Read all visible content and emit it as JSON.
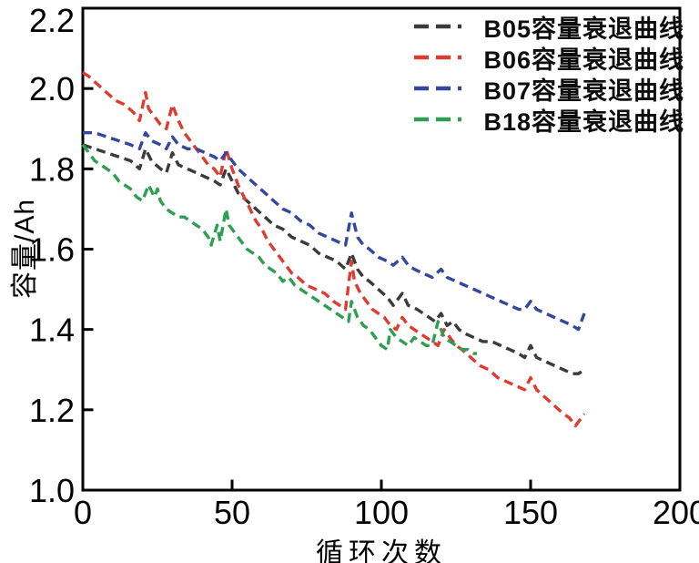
{
  "figure": {
    "background_color": "#ffffff",
    "axis_color": "#000000",
    "tick_direction": "in"
  },
  "chart_data": {
    "type": "line",
    "title": "",
    "xlabel": "循环次数",
    "ylabel": "容量/Ah",
    "xlim": [
      0,
      200
    ],
    "ylim": [
      1.0,
      2.2
    ],
    "xticks": [
      0,
      50,
      100,
      150,
      200
    ],
    "xtick_labels": [
      "0",
      "50",
      "100",
      "150",
      "200"
    ],
    "yticks": [
      1.0,
      1.2,
      1.4,
      1.6,
      1.8,
      2.0,
      2.2
    ],
    "ytick_labels": [
      "1.0",
      "1.2",
      "1.4",
      "1.6",
      "1.8",
      "2.0",
      "2.2"
    ],
    "grid": false,
    "legend_position": "top-right-inside",
    "legend_marker": "dash-dash-dot",
    "line_style": "dashed",
    "series": [
      {
        "name": "B05容量衰退曲线",
        "color": "#3b3b3b",
        "points": [
          [
            0,
            1.86
          ],
          [
            4,
            1.85
          ],
          [
            8,
            1.84
          ],
          [
            12,
            1.83
          ],
          [
            16,
            1.82
          ],
          [
            19,
            1.8
          ],
          [
            21,
            1.85
          ],
          [
            23,
            1.82
          ],
          [
            26,
            1.8
          ],
          [
            28,
            1.79
          ],
          [
            30,
            1.84
          ],
          [
            32,
            1.81
          ],
          [
            35,
            1.8
          ],
          [
            38,
            1.79
          ],
          [
            41,
            1.78
          ],
          [
            44,
            1.77
          ],
          [
            46,
            1.76
          ],
          [
            48,
            1.8
          ],
          [
            50,
            1.77
          ],
          [
            52,
            1.74
          ],
          [
            55,
            1.72
          ],
          [
            58,
            1.7
          ],
          [
            61,
            1.68
          ],
          [
            64,
            1.66
          ],
          [
            67,
            1.65
          ],
          [
            70,
            1.63
          ],
          [
            73,
            1.62
          ],
          [
            76,
            1.61
          ],
          [
            79,
            1.59
          ],
          [
            82,
            1.58
          ],
          [
            85,
            1.57
          ],
          [
            88,
            1.55
          ],
          [
            90,
            1.59
          ],
          [
            92,
            1.55
          ],
          [
            94,
            1.53
          ],
          [
            96,
            1.52
          ],
          [
            99,
            1.5
          ],
          [
            102,
            1.48
          ],
          [
            104,
            1.46
          ],
          [
            107,
            1.49
          ],
          [
            109,
            1.46
          ],
          [
            112,
            1.45
          ],
          [
            114,
            1.44
          ],
          [
            116,
            1.43
          ],
          [
            118,
            1.42
          ],
          [
            120,
            1.44
          ],
          [
            122,
            1.41
          ],
          [
            124,
            1.42
          ],
          [
            126,
            1.4
          ],
          [
            128,
            1.39
          ],
          [
            131,
            1.38
          ],
          [
            134,
            1.37
          ],
          [
            137,
            1.37
          ],
          [
            140,
            1.36
          ],
          [
            143,
            1.35
          ],
          [
            146,
            1.34
          ],
          [
            148,
            1.33
          ],
          [
            150,
            1.36
          ],
          [
            152,
            1.33
          ],
          [
            155,
            1.32
          ],
          [
            158,
            1.31
          ],
          [
            161,
            1.3
          ],
          [
            164,
            1.29
          ],
          [
            166,
            1.29
          ],
          [
            168,
            1.3
          ]
        ]
      },
      {
        "name": "B06容量衰退曲线",
        "color": "#de3b31",
        "points": [
          [
            0,
            2.04
          ],
          [
            2,
            2.03
          ],
          [
            5,
            2.01
          ],
          [
            8,
            1.99
          ],
          [
            11,
            1.97
          ],
          [
            14,
            1.96
          ],
          [
            17,
            1.94
          ],
          [
            19,
            1.92
          ],
          [
            21,
            1.99
          ],
          [
            22,
            1.95
          ],
          [
            24,
            1.93
          ],
          [
            26,
            1.91
          ],
          [
            28,
            1.9
          ],
          [
            30,
            1.96
          ],
          [
            32,
            1.92
          ],
          [
            34,
            1.89
          ],
          [
            36,
            1.87
          ],
          [
            38,
            1.85
          ],
          [
            40,
            1.83
          ],
          [
            42,
            1.81
          ],
          [
            44,
            1.8
          ],
          [
            46,
            1.78
          ],
          [
            48,
            1.85
          ],
          [
            50,
            1.8
          ],
          [
            52,
            1.76
          ],
          [
            54,
            1.73
          ],
          [
            56,
            1.7
          ],
          [
            58,
            1.67
          ],
          [
            60,
            1.65
          ],
          [
            62,
            1.62
          ],
          [
            64,
            1.6
          ],
          [
            66,
            1.58
          ],
          [
            68,
            1.56
          ],
          [
            70,
            1.54
          ],
          [
            72,
            1.53
          ],
          [
            75,
            1.51
          ],
          [
            78,
            1.5
          ],
          [
            81,
            1.49
          ],
          [
            84,
            1.47
          ],
          [
            86,
            1.46
          ],
          [
            88,
            1.45
          ],
          [
            90,
            1.57
          ],
          [
            91,
            1.52
          ],
          [
            93,
            1.49
          ],
          [
            95,
            1.47
          ],
          [
            97,
            1.45
          ],
          [
            99,
            1.44
          ],
          [
            101,
            1.43
          ],
          [
            103,
            1.41
          ],
          [
            105,
            1.4
          ],
          [
            107,
            1.43
          ],
          [
            109,
            1.41
          ],
          [
            111,
            1.4
          ],
          [
            113,
            1.39
          ],
          [
            115,
            1.38
          ],
          [
            117,
            1.37
          ],
          [
            119,
            1.36
          ],
          [
            121,
            1.4
          ],
          [
            123,
            1.38
          ],
          [
            125,
            1.36
          ],
          [
            127,
            1.35
          ],
          [
            130,
            1.33
          ],
          [
            133,
            1.31
          ],
          [
            136,
            1.3
          ],
          [
            139,
            1.28
          ],
          [
            142,
            1.27
          ],
          [
            145,
            1.26
          ],
          [
            148,
            1.25
          ],
          [
            150,
            1.28
          ],
          [
            152,
            1.25
          ],
          [
            155,
            1.23
          ],
          [
            158,
            1.21
          ],
          [
            161,
            1.19
          ],
          [
            163,
            1.18
          ],
          [
            165,
            1.16
          ],
          [
            168,
            1.19
          ]
        ]
      },
      {
        "name": "B07容量衰退曲线",
        "color": "#34479c",
        "points": [
          [
            0,
            1.89
          ],
          [
            4,
            1.89
          ],
          [
            8,
            1.88
          ],
          [
            12,
            1.87
          ],
          [
            16,
            1.86
          ],
          [
            19,
            1.85
          ],
          [
            21,
            1.89
          ],
          [
            23,
            1.87
          ],
          [
            26,
            1.86
          ],
          [
            28,
            1.85
          ],
          [
            30,
            1.88
          ],
          [
            32,
            1.86
          ],
          [
            35,
            1.85
          ],
          [
            38,
            1.85
          ],
          [
            41,
            1.84
          ],
          [
            44,
            1.83
          ],
          [
            46,
            1.82
          ],
          [
            48,
            1.84
          ],
          [
            50,
            1.82
          ],
          [
            52,
            1.8
          ],
          [
            55,
            1.78
          ],
          [
            58,
            1.76
          ],
          [
            61,
            1.74
          ],
          [
            64,
            1.72
          ],
          [
            67,
            1.7
          ],
          [
            70,
            1.69
          ],
          [
            73,
            1.67
          ],
          [
            76,
            1.66
          ],
          [
            79,
            1.64
          ],
          [
            82,
            1.63
          ],
          [
            85,
            1.62
          ],
          [
            88,
            1.61
          ],
          [
            90,
            1.69
          ],
          [
            92,
            1.63
          ],
          [
            94,
            1.61
          ],
          [
            96,
            1.6
          ],
          [
            99,
            1.58
          ],
          [
            102,
            1.57
          ],
          [
            104,
            1.56
          ],
          [
            107,
            1.58
          ],
          [
            109,
            1.56
          ],
          [
            111,
            1.55
          ],
          [
            114,
            1.54
          ],
          [
            117,
            1.53
          ],
          [
            120,
            1.55
          ],
          [
            122,
            1.53
          ],
          [
            125,
            1.52
          ],
          [
            128,
            1.51
          ],
          [
            131,
            1.5
          ],
          [
            134,
            1.49
          ],
          [
            137,
            1.48
          ],
          [
            140,
            1.47
          ],
          [
            143,
            1.46
          ],
          [
            146,
            1.45
          ],
          [
            148,
            1.45
          ],
          [
            150,
            1.47
          ],
          [
            152,
            1.45
          ],
          [
            155,
            1.44
          ],
          [
            158,
            1.43
          ],
          [
            161,
            1.42
          ],
          [
            164,
            1.41
          ],
          [
            166,
            1.4
          ],
          [
            168,
            1.44
          ]
        ]
      },
      {
        "name": "B18容量衰退曲线",
        "color": "#2d9e52",
        "points": [
          [
            0,
            1.86
          ],
          [
            2,
            1.84
          ],
          [
            4,
            1.82
          ],
          [
            6,
            1.81
          ],
          [
            8,
            1.8
          ],
          [
            10,
            1.79
          ],
          [
            12,
            1.77
          ],
          [
            14,
            1.76
          ],
          [
            16,
            1.75
          ],
          [
            18,
            1.73
          ],
          [
            20,
            1.72
          ],
          [
            22,
            1.76
          ],
          [
            24,
            1.73
          ],
          [
            25,
            1.75
          ],
          [
            26,
            1.72
          ],
          [
            28,
            1.7
          ],
          [
            30,
            1.69
          ],
          [
            32,
            1.68
          ],
          [
            34,
            1.68
          ],
          [
            36,
            1.67
          ],
          [
            38,
            1.66
          ],
          [
            40,
            1.65
          ],
          [
            42,
            1.63
          ],
          [
            43,
            1.61
          ],
          [
            45,
            1.66
          ],
          [
            46,
            1.62
          ],
          [
            48,
            1.7
          ],
          [
            49,
            1.66
          ],
          [
            51,
            1.64
          ],
          [
            53,
            1.62
          ],
          [
            55,
            1.6
          ],
          [
            57,
            1.59
          ],
          [
            59,
            1.58
          ],
          [
            61,
            1.56
          ],
          [
            63,
            1.55
          ],
          [
            65,
            1.54
          ],
          [
            67,
            1.52
          ],
          [
            69,
            1.53
          ],
          [
            71,
            1.51
          ],
          [
            73,
            1.5
          ],
          [
            75,
            1.49
          ],
          [
            77,
            1.48
          ],
          [
            79,
            1.47
          ],
          [
            81,
            1.46
          ],
          [
            83,
            1.45
          ],
          [
            85,
            1.44
          ],
          [
            87,
            1.43
          ],
          [
            89,
            1.42
          ],
          [
            90,
            1.47
          ],
          [
            92,
            1.43
          ],
          [
            94,
            1.41
          ],
          [
            96,
            1.4
          ],
          [
            98,
            1.38
          ],
          [
            100,
            1.36
          ],
          [
            102,
            1.35
          ],
          [
            103,
            1.4
          ],
          [
            105,
            1.38
          ],
          [
            107,
            1.37
          ],
          [
            109,
            1.36
          ],
          [
            111,
            1.38
          ],
          [
            113,
            1.37
          ],
          [
            115,
            1.36
          ],
          [
            117,
            1.36
          ],
          [
            119,
            1.42
          ],
          [
            121,
            1.38
          ],
          [
            123,
            1.37
          ],
          [
            125,
            1.36
          ],
          [
            127,
            1.35
          ],
          [
            129,
            1.35
          ],
          [
            131,
            1.34
          ],
          [
            132,
            1.34
          ]
        ]
      }
    ]
  }
}
